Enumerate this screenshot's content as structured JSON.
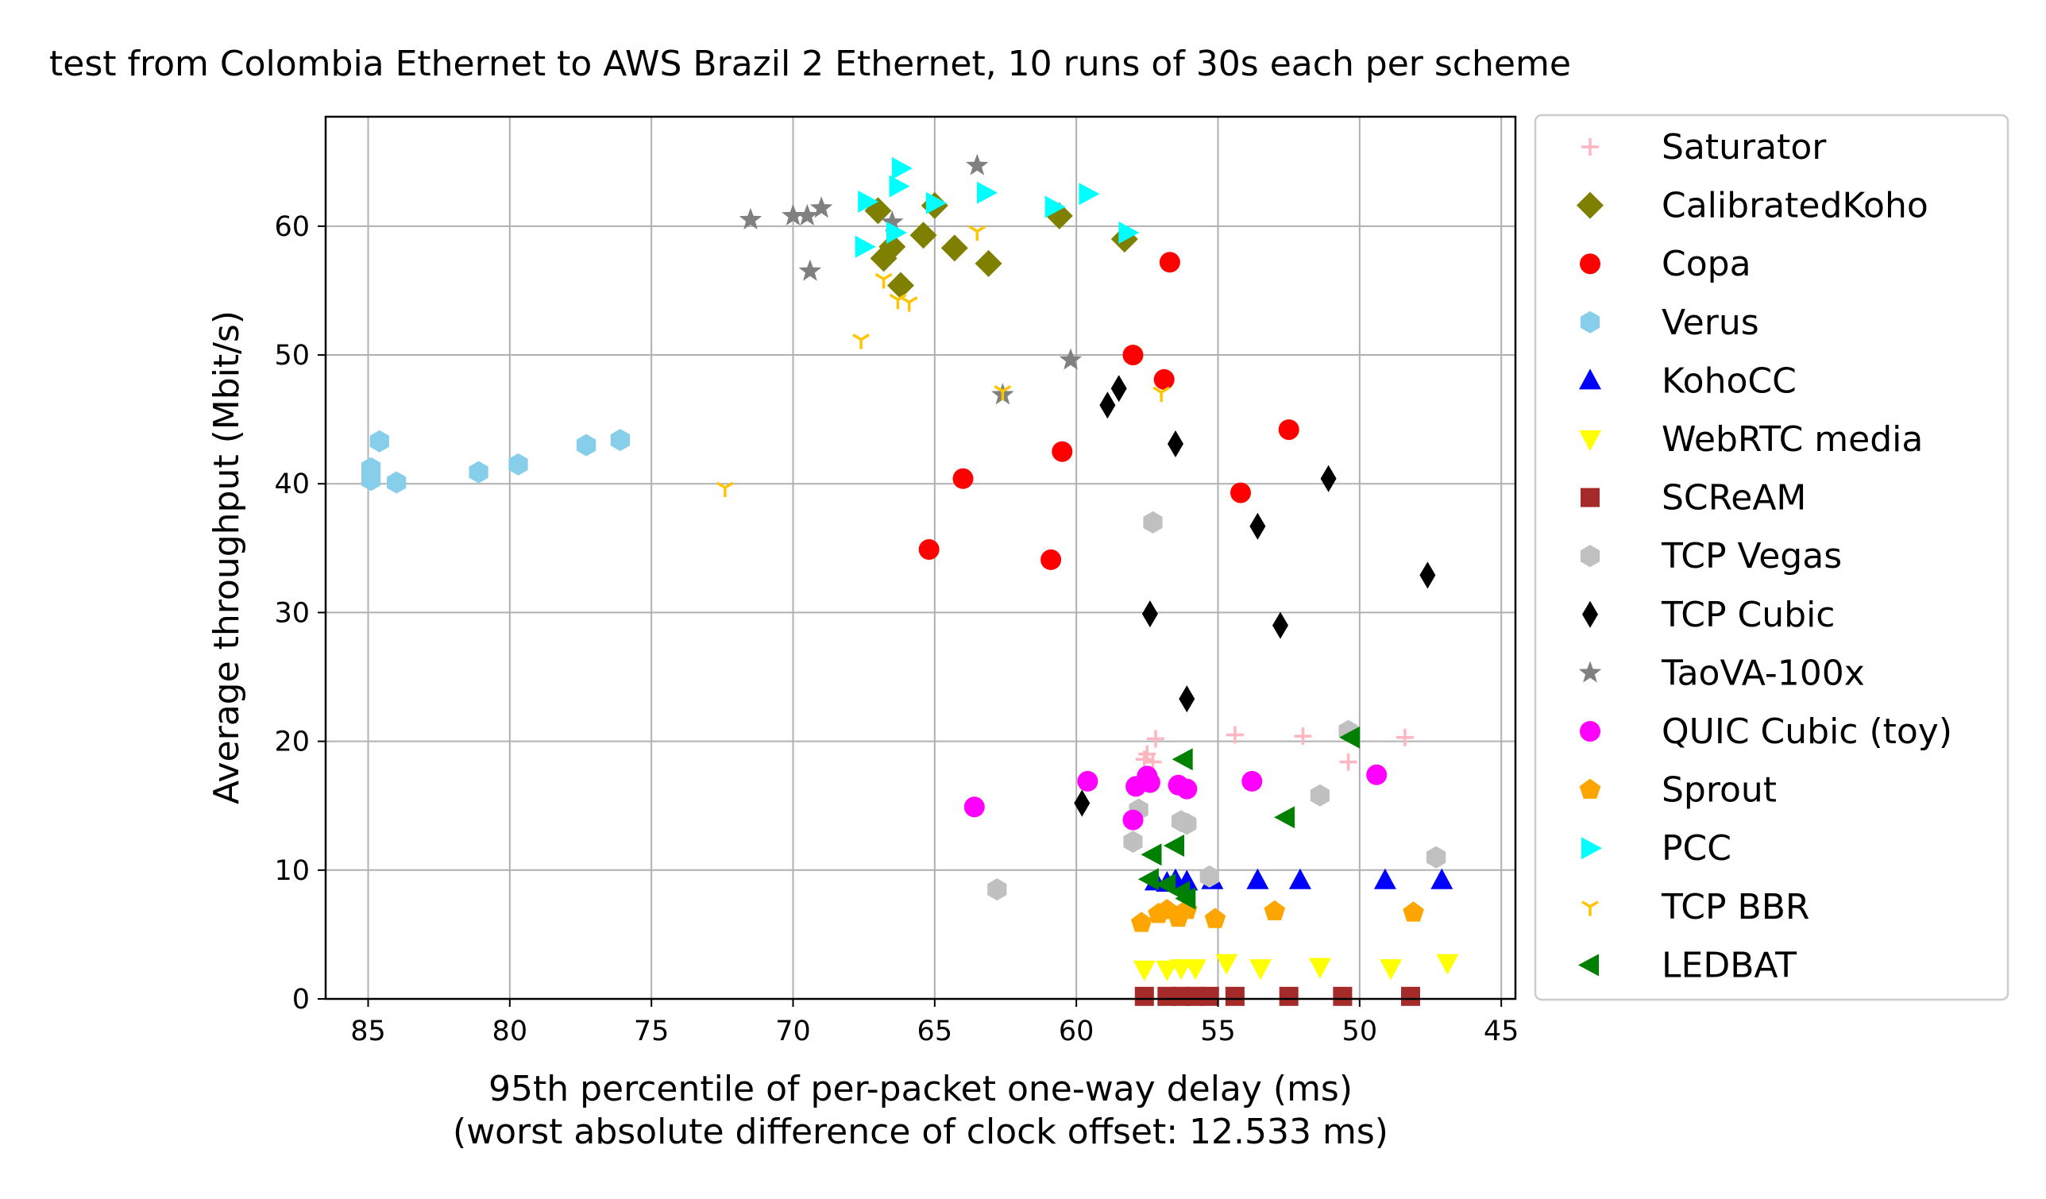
{
  "chart_data": {
    "type": "scatter",
    "title": "test from Colombia Ethernet to AWS Brazil 2 Ethernet, 10 runs of 30s each per scheme",
    "xlabel": "95th percentile of per-packet one-way delay (ms)",
    "xlabel2": "(worst absolute difference of clock offset: 12.533 ms)",
    "ylabel": "Average throughput (Mbit/s)",
    "xlim": [
      86.5,
      44.5
    ],
    "ylim": [
      0,
      68.5
    ],
    "x_inverted": true,
    "grid": true,
    "legend_position": "outside-right",
    "xticks": [
      85,
      80,
      75,
      70,
      65,
      60,
      55,
      50,
      45
    ],
    "xtick_labels": [
      "85",
      "80",
      "75",
      "70",
      "65",
      "60",
      "55",
      "50",
      "45"
    ],
    "yticks": [
      0,
      10,
      20,
      30,
      40,
      50,
      60
    ],
    "ytick_labels": [
      "0",
      "10",
      "20",
      "30",
      "40",
      "50",
      "60"
    ],
    "series": [
      {
        "name": "Saturator",
        "marker": "plus",
        "color": "#ffb6c1",
        "x": [
          57.6,
          57.2,
          57.3,
          54.4,
          52.0,
          50.4,
          48.4,
          57.5
        ],
        "y": [
          18.6,
          20.2,
          18.4,
          20.5,
          20.4,
          18.4,
          20.3,
          19.0
        ]
      },
      {
        "name": "CalibratedKoho",
        "marker": "diamond",
        "color": "#808000",
        "x": [
          67.0,
          66.5,
          66.2,
          65.4,
          64.3,
          63.1,
          60.6,
          58.3,
          65.0,
          66.8
        ],
        "y": [
          61.2,
          58.4,
          55.4,
          59.3,
          58.3,
          57.1,
          60.8,
          59.0,
          61.6,
          57.5
        ]
      },
      {
        "name": "Copa",
        "marker": "circle",
        "color": "#ff0000",
        "x": [
          56.7,
          58.0,
          56.9,
          52.5,
          54.2,
          60.5,
          64.0,
          65.2,
          60.9
        ],
        "y": [
          57.2,
          50.0,
          48.1,
          44.2,
          39.3,
          42.5,
          40.4,
          34.9,
          34.1
        ]
      },
      {
        "name": "Verus",
        "marker": "hexagon",
        "color": "#87ceeb",
        "x": [
          84.6,
          84.9,
          84.9,
          84.0,
          81.1,
          79.7,
          77.3,
          76.1
        ],
        "y": [
          43.3,
          41.2,
          40.3,
          40.1,
          40.9,
          41.5,
          43.0,
          43.4
        ]
      },
      {
        "name": "KohoCC",
        "marker": "triangle-up",
        "color": "#0000ff",
        "x": [
          57.2,
          56.5,
          56.1,
          55.2,
          53.6,
          52.1,
          49.1,
          47.1,
          56.8
        ],
        "y": [
          9.1,
          9.2,
          9.1,
          9.2,
          9.2,
          9.2,
          9.2,
          9.2,
          9.0
        ]
      },
      {
        "name": "WebRTC media",
        "marker": "triangle-down",
        "color": "#ffff00",
        "x": [
          57.6,
          56.8,
          56.3,
          55.8,
          54.7,
          53.5,
          51.4,
          48.9,
          46.9
        ],
        "y": [
          2.3,
          2.3,
          2.4,
          2.4,
          2.8,
          2.4,
          2.5,
          2.4,
          2.8
        ]
      },
      {
        "name": "SCReAM",
        "marker": "square",
        "color": "#a52a2a",
        "x": [
          57.6,
          56.8,
          56.3,
          55.8,
          55.3,
          54.4,
          52.5,
          50.6,
          48.2
        ],
        "y": [
          0.2,
          0.2,
          0.2,
          0.2,
          0.2,
          0.2,
          0.2,
          0.2,
          0.2
        ]
      },
      {
        "name": "TCP Vegas",
        "marker": "hexagon",
        "color": "#c0c0c0",
        "x": [
          57.3,
          62.8,
          58.0,
          57.8,
          56.3,
          56.1,
          55.3,
          51.4,
          50.4,
          47.3
        ],
        "y": [
          37.0,
          8.5,
          12.2,
          14.7,
          13.8,
          13.6,
          9.5,
          15.8,
          20.8,
          11.0
        ]
      },
      {
        "name": "TCP Cubic",
        "marker": "thin-diamond",
        "color": "#000000",
        "x": [
          58.9,
          58.5,
          56.5,
          53.6,
          51.1,
          47.6,
          57.4,
          52.8,
          56.1,
          59.8
        ],
        "y": [
          46.1,
          47.4,
          43.1,
          36.7,
          40.4,
          32.9,
          29.9,
          29.0,
          23.3,
          15.2
        ]
      },
      {
        "name": "TaoVA-100x",
        "marker": "star",
        "color": "#808080",
        "x": [
          71.5,
          70.0,
          69.5,
          69.0,
          69.4,
          63.5,
          66.5,
          60.2,
          62.6
        ],
        "y": [
          60.5,
          60.8,
          60.8,
          61.4,
          56.5,
          64.7,
          60.3,
          49.6,
          46.9
        ]
      },
      {
        "name": "QUIC Cubic (toy)",
        "marker": "circle",
        "color": "#ff00ff",
        "x": [
          63.6,
          59.6,
          57.9,
          57.5,
          56.4,
          56.1,
          53.8,
          49.4,
          58.0,
          57.4
        ],
        "y": [
          14.9,
          16.9,
          16.5,
          17.3,
          16.6,
          16.3,
          16.9,
          17.4,
          13.9,
          16.8
        ]
      },
      {
        "name": "Sprout",
        "marker": "pentagon",
        "color": "#ffa500",
        "x": [
          57.7,
          57.1,
          56.8,
          56.4,
          56.1,
          55.1,
          53.0,
          48.1
        ],
        "y": [
          5.9,
          6.6,
          6.9,
          6.3,
          6.9,
          6.2,
          6.8,
          6.7
        ]
      },
      {
        "name": "PCC",
        "marker": "triangle-right",
        "color": "#00ffff",
        "x": [
          66.2,
          66.3,
          67.4,
          67.5,
          66.4,
          65.0,
          63.2,
          60.8,
          59.6,
          58.2
        ],
        "y": [
          64.5,
          63.1,
          61.9,
          58.4,
          59.5,
          61.8,
          62.6,
          61.5,
          62.5,
          59.5
        ]
      },
      {
        "name": "TCP BBR",
        "marker": "tri-down",
        "color": "#ffc400",
        "x": [
          72.4,
          67.6,
          66.3,
          65.9,
          63.5,
          62.6,
          57.0,
          66.8
        ],
        "y": [
          39.7,
          51.2,
          54.3,
          54.1,
          59.6,
          47.2,
          47.1,
          55.9
        ]
      },
      {
        "name": "LEDBAT",
        "marker": "triangle-left",
        "color": "#008000",
        "x": [
          57.3,
          56.5,
          56.2,
          57.4,
          56.8,
          56.3,
          56.1,
          52.6,
          50.3
        ],
        "y": [
          11.2,
          11.9,
          18.6,
          9.3,
          8.9,
          8.3,
          7.8,
          14.1,
          20.3
        ]
      }
    ]
  }
}
